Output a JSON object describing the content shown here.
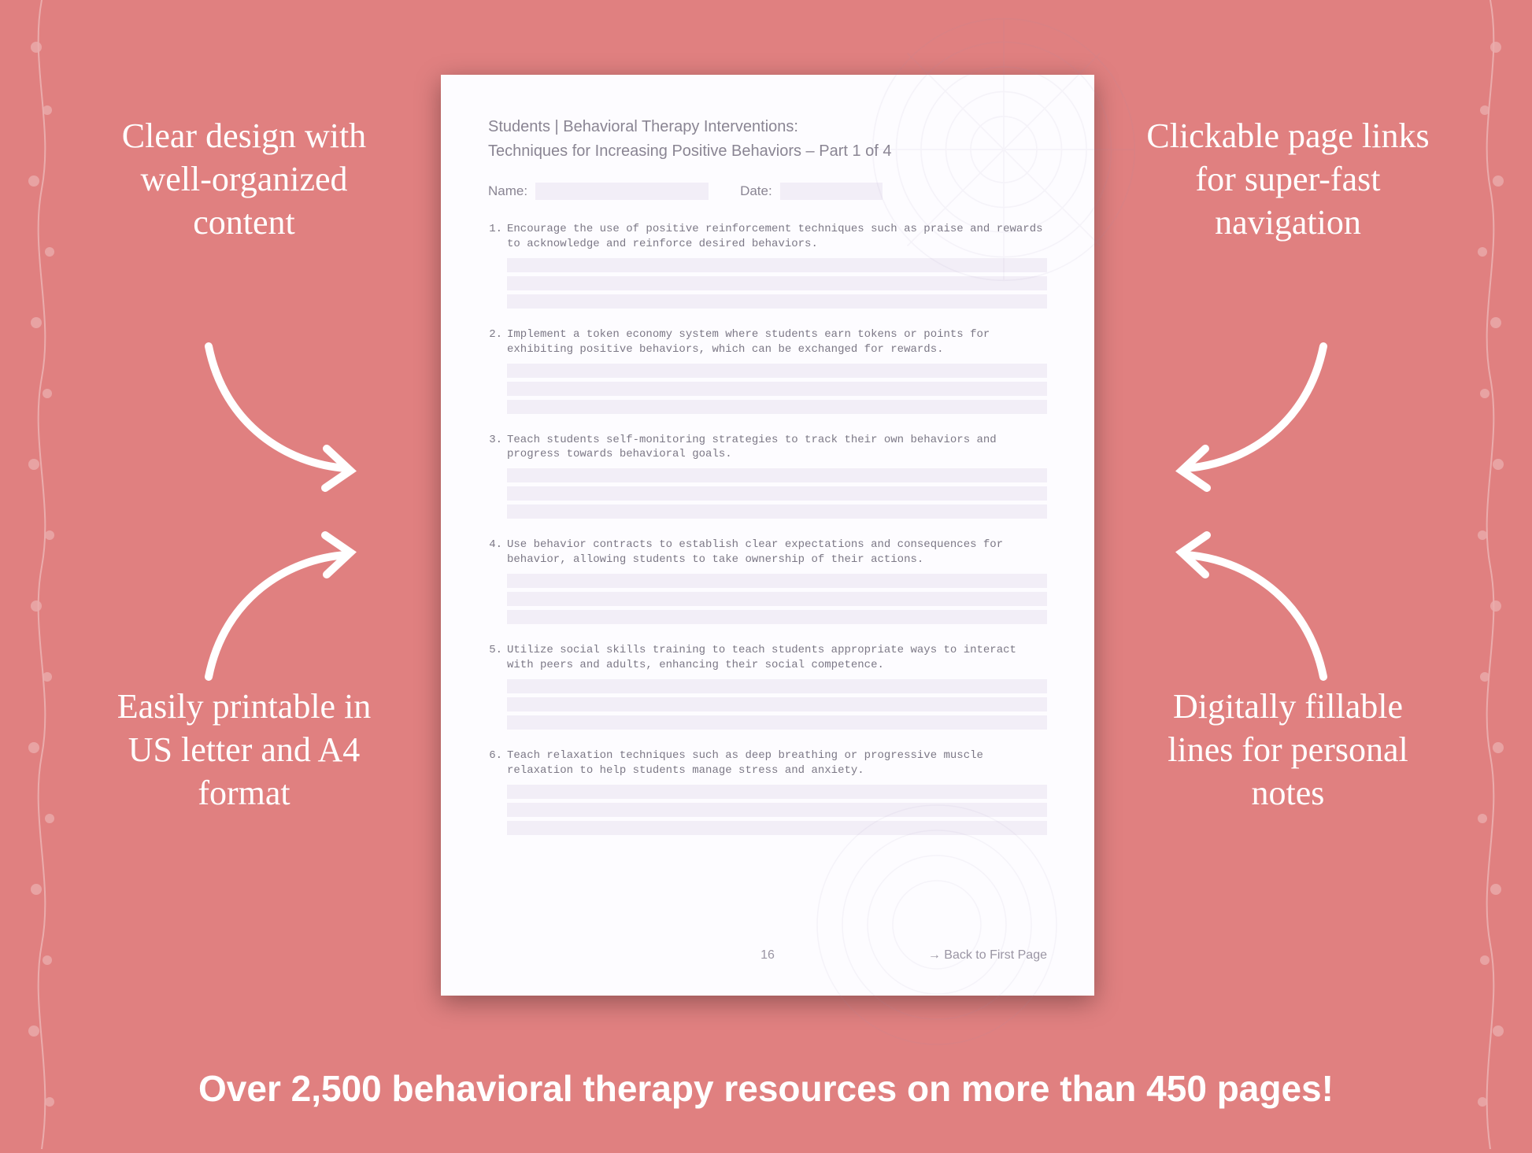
{
  "background_color": "#e08080",
  "callouts": {
    "top_left": "Clear design with well-organized content",
    "top_right": "Clickable page links for super-fast navigation",
    "bottom_left": "Easily printable in US letter and A4 format",
    "bottom_right": "Digitally fillable lines for personal notes"
  },
  "footer": "Over 2,500 behavioral therapy resources on more than 450 pages!",
  "document": {
    "header": "Students | Behavioral Therapy Interventions:",
    "subheader": "Techniques for Increasing Positive Behaviors – Part 1 of 4",
    "name_label": "Name:",
    "date_label": "Date:",
    "items": [
      "Encourage the use of positive reinforcement techniques such as praise and rewards to acknowledge and reinforce desired behaviors.",
      "Implement a token economy system where students earn tokens or points for exhibiting positive behaviors, which can be exchanged for rewards.",
      "Teach students self-monitoring strategies to track their own behaviors and progress towards behavioral goals.",
      "Use behavior contracts to establish clear expectations and consequences for behavior, allowing students to take ownership of their actions.",
      "Utilize social skills training to teach students appropriate ways to interact with peers and adults, enhancing their social competence.",
      "Teach relaxation techniques such as deep breathing or progressive muscle relaxation to help students manage stress and anxiety."
    ],
    "page_number": "16",
    "back_link": "→ Back to First Page",
    "fill_line_color": "#f2eef7",
    "note_lines_per_item": 3
  },
  "style": {
    "callout_color": "#ffffff",
    "callout_fontsize": 44,
    "footer_fontsize": 46,
    "page_bg": "#fdfcff",
    "page_shadow": "rgba(0,0,0,0.35)",
    "doc_text_color": "#7c7886",
    "doc_header_color": "#8a8593"
  }
}
